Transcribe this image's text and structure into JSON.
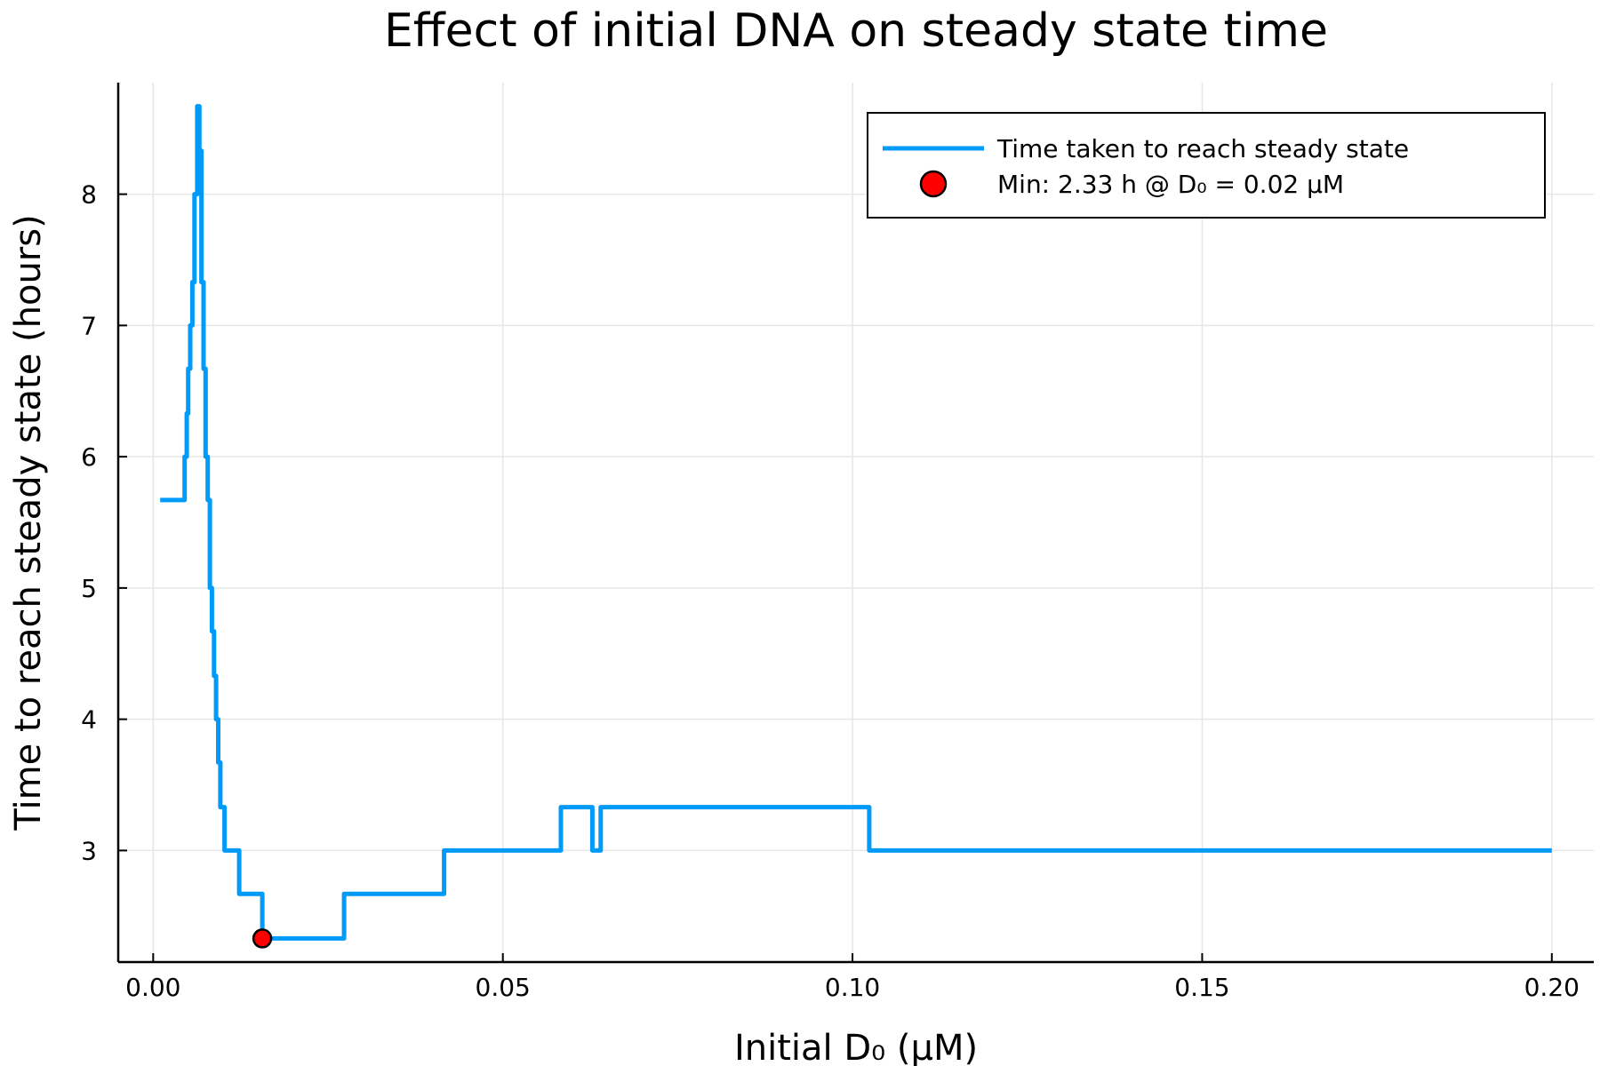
{
  "chart_data": {
    "type": "line",
    "title": "Effect of initial DNA on steady state time",
    "xlabel": "Initial D₀ (μM)",
    "ylabel": "Time to reach steady state (hours)",
    "xlim": [
      -0.005,
      0.206
    ],
    "ylim": [
      2.15,
      8.85
    ],
    "xticks": [
      0.0,
      0.05,
      0.1,
      0.15,
      0.2
    ],
    "xtick_labels": [
      "0.00",
      "0.05",
      "0.10",
      "0.15",
      "0.20"
    ],
    "yticks": [
      3,
      4,
      5,
      6,
      7,
      8
    ],
    "ytick_labels": [
      "3",
      "4",
      "5",
      "6",
      "7",
      "8"
    ],
    "grid": true,
    "legend_position": "top-right",
    "series": [
      {
        "name": "Time taken to reach steady state",
        "color": "#009af9",
        "style": "line",
        "x": [
          0.001,
          0.0045,
          0.0045,
          0.0048,
          0.0048,
          0.005,
          0.005,
          0.0053,
          0.0053,
          0.0056,
          0.0056,
          0.0059,
          0.0059,
          0.0063,
          0.0063,
          0.0066,
          0.0066,
          0.0069,
          0.0069,
          0.0072,
          0.0072,
          0.0075,
          0.0075,
          0.0078,
          0.0078,
          0.0081,
          0.0081,
          0.0084,
          0.0084,
          0.0087,
          0.0087,
          0.009,
          0.009,
          0.0093,
          0.0093,
          0.0096,
          0.0096,
          0.0099,
          0.0099,
          0.0102,
          0.0102,
          0.0105,
          0.0105,
          0.0108,
          0.0108,
          0.011,
          0.011,
          0.0113,
          0.0113,
          0.0123,
          0.0123,
          0.0153,
          0.0153,
          0.0156,
          0.0156,
          0.0273,
          0.0273,
          0.0416,
          0.0416,
          0.0583,
          0.0583,
          0.0628,
          0.0628,
          0.064,
          0.064,
          0.1024,
          0.1024,
          0.2
        ],
        "y": [
          5.67,
          5.67,
          6.0,
          6.0,
          6.33,
          6.33,
          6.67,
          6.67,
          7.0,
          7.0,
          7.33,
          7.33,
          8.0,
          8.0,
          8.67,
          8.67,
          8.33,
          8.33,
          7.33,
          7.33,
          6.67,
          6.67,
          6.0,
          6.0,
          5.67,
          5.67,
          5.0,
          5.0,
          4.67,
          4.67,
          4.33,
          4.33,
          4.0,
          4.0,
          3.67,
          3.67,
          3.33,
          3.33,
          3.33,
          3.33,
          3.0,
          3.0,
          3.0,
          3.0,
          3.0,
          3.0,
          3.0,
          3.0,
          3.0,
          3.0,
          2.67,
          2.67,
          2.67,
          2.67,
          2.33,
          2.33,
          2.67,
          2.67,
          3.0,
          3.0,
          3.33,
          3.33,
          3.0,
          3.0,
          3.33,
          3.33,
          3.0,
          3.0
        ]
      },
      {
        "name": "Min: 2.33 h @ D₀ = 0.02 μM",
        "color": "#ff0000",
        "style": "marker",
        "x": [
          0.0156
        ],
        "y": [
          2.33
        ]
      }
    ]
  }
}
